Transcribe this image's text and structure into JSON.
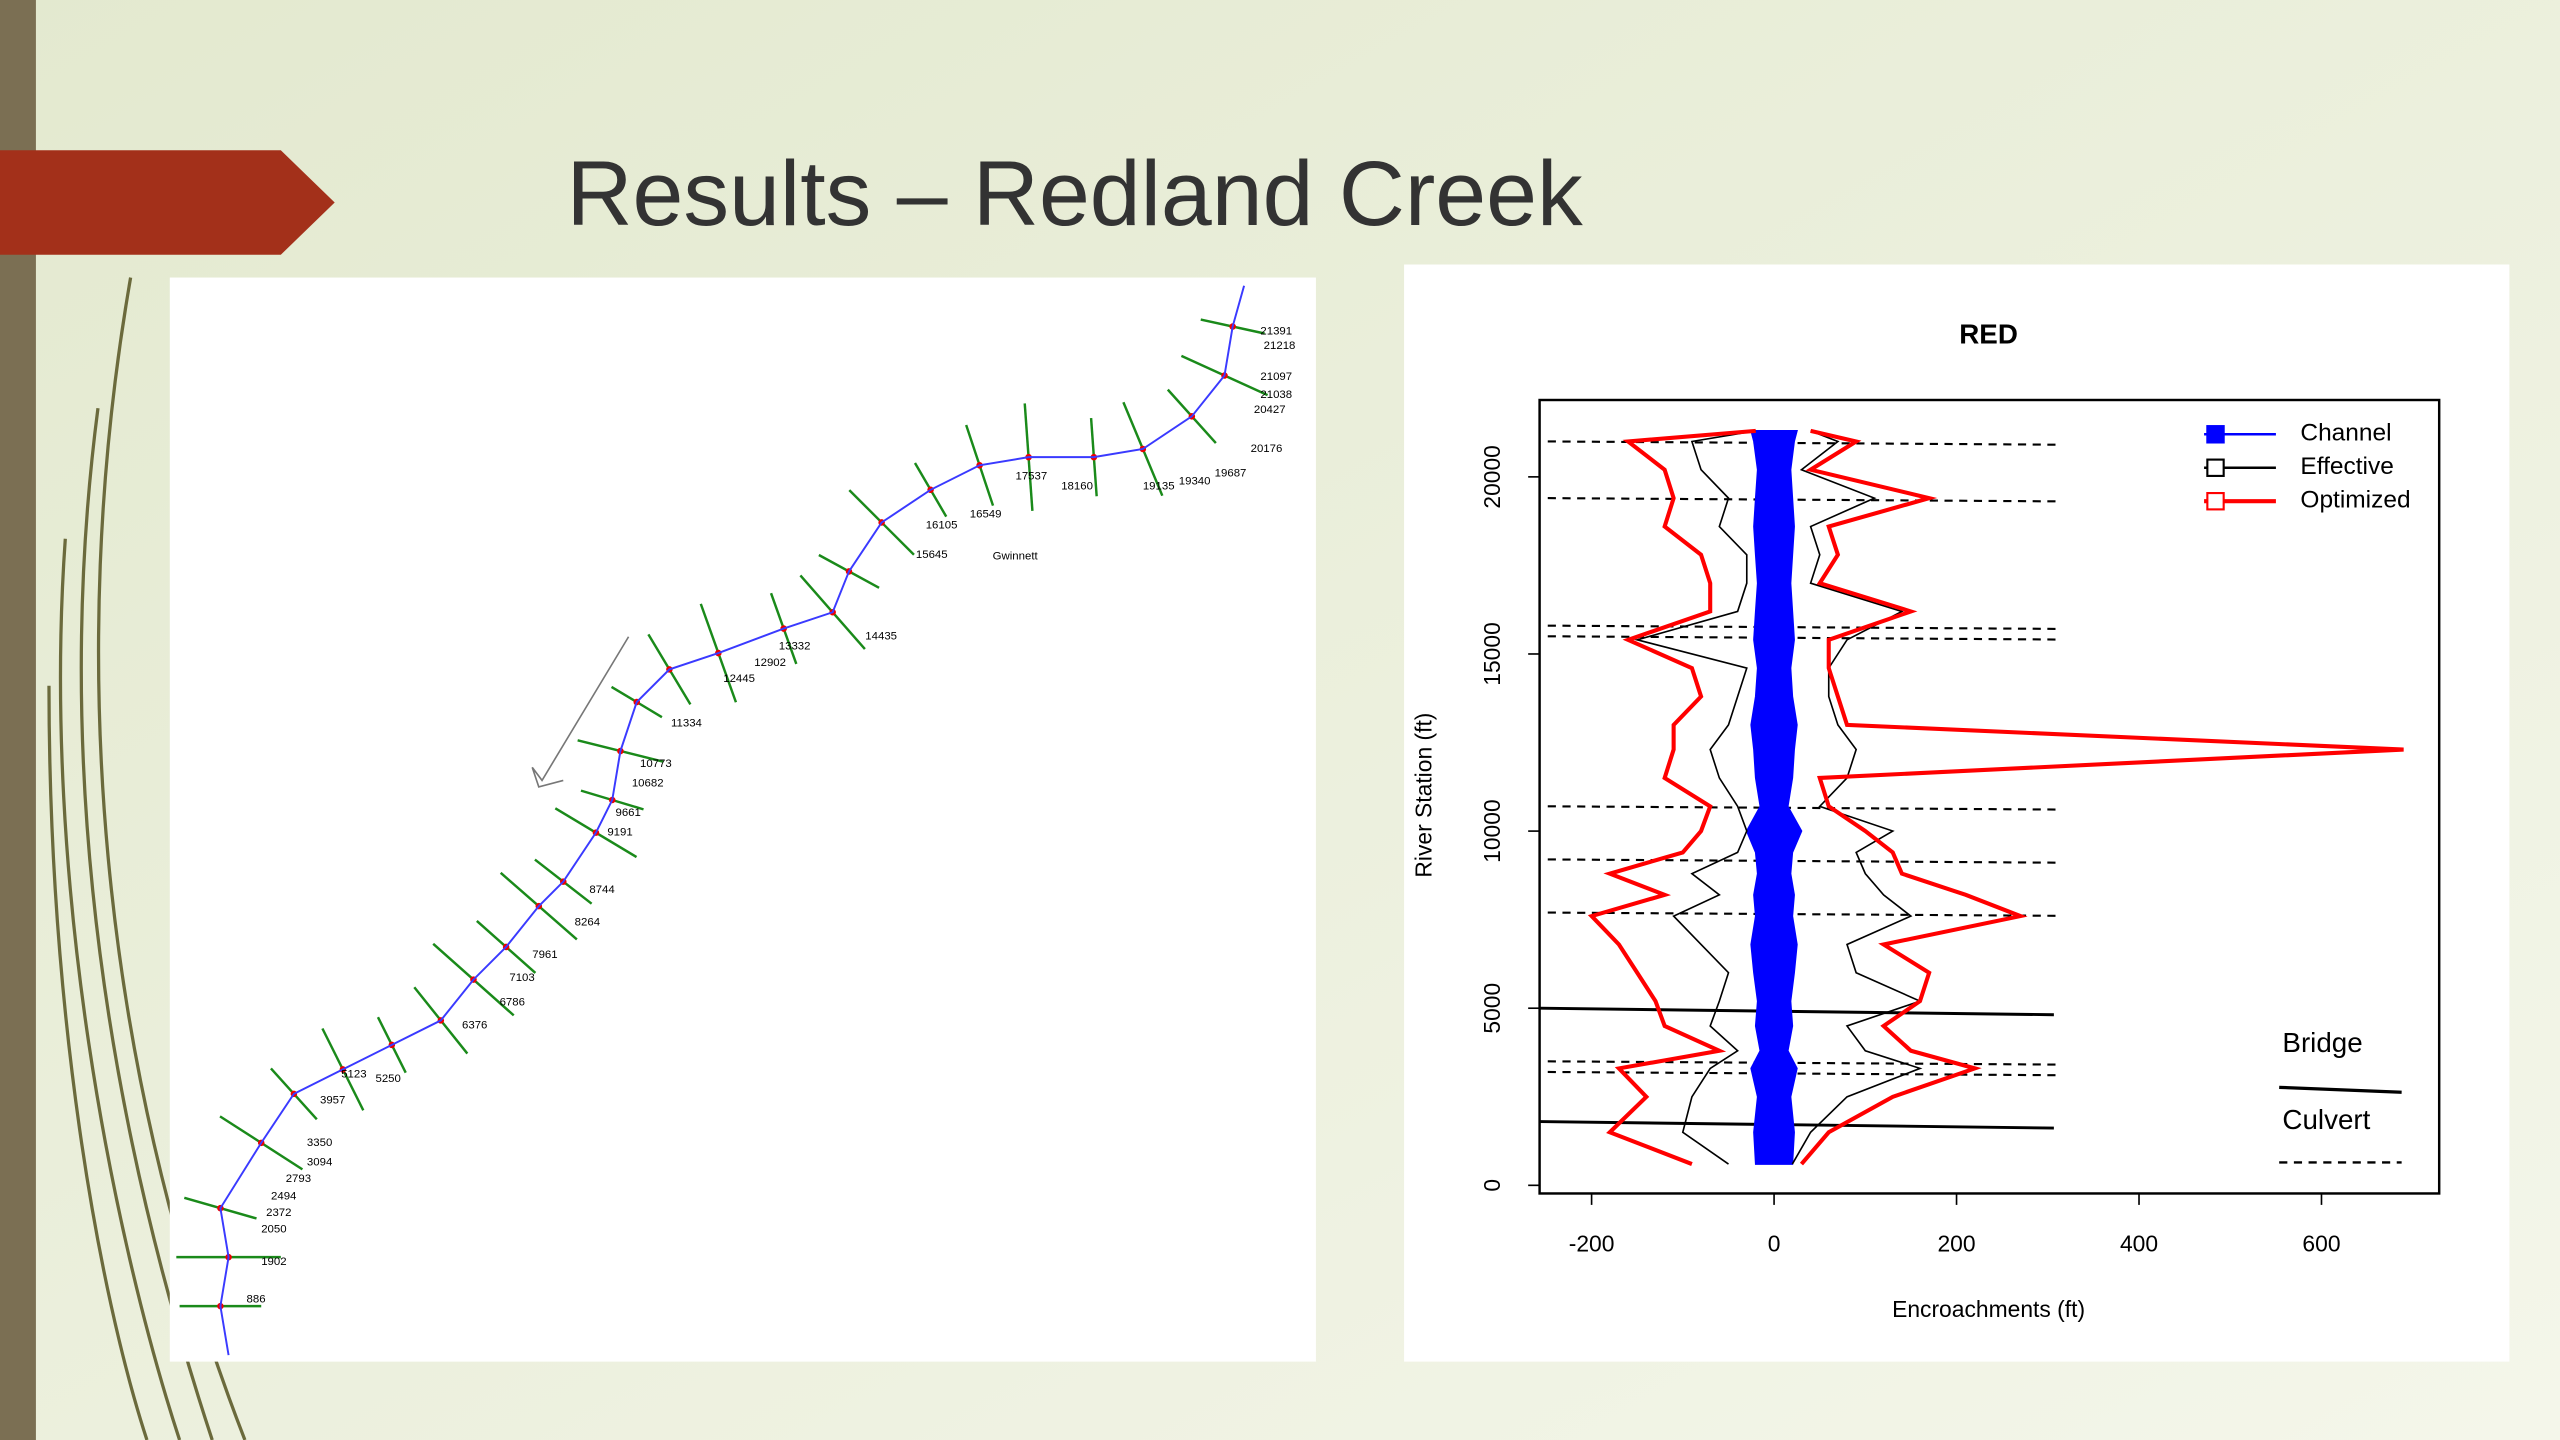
{
  "slide": {
    "title": "Results – Redland Creek"
  },
  "map": {
    "county": "Gwinnett",
    "labels": [
      "21391",
      "21218",
      "21097",
      "21038",
      "20427",
      "20176",
      "19687",
      "19340",
      "19135",
      "18160",
      "17537",
      "16549",
      "16105",
      "15645",
      "14435",
      "13332",
      "12902",
      "12445",
      "11334",
      "10773",
      "10682",
      "9661",
      "9191",
      "8744",
      "8264",
      "7961",
      "7103",
      "6786",
      "6376",
      "5250",
      "5123",
      "3957",
      "3350",
      "3094",
      "2793",
      "2494",
      "2372",
      "2050",
      "1902",
      "886"
    ]
  },
  "chart_data": {
    "type": "line",
    "title": "RED",
    "x_label": "Encroachments (ft)",
    "y_label": "River Station (ft)",
    "xlim": [
      -257,
      729
    ],
    "ylim": [
      -230,
      22170
    ],
    "xticks": [
      -200,
      0,
      200,
      400,
      600
    ],
    "yticks": [
      0,
      5000,
      10000,
      15000,
      20000
    ],
    "stations": [
      600,
      1500,
      2500,
      3300,
      3800,
      4500,
      5200,
      6000,
      6800,
      7600,
      8200,
      8800,
      9400,
      10000,
      10700,
      11500,
      12300,
      13000,
      13800,
      14600,
      15400,
      16200,
      17000,
      17800,
      18600,
      19400,
      20200,
      21000,
      21300
    ],
    "series": [
      {
        "name": "Channel",
        "color": "#0000ff",
        "left": [
          -20,
          -22,
          -18,
          -25,
          -15,
          -20,
          -18,
          -22,
          -25,
          -20,
          -22,
          -18,
          -20,
          -30,
          -15,
          -20,
          -22,
          -25,
          -20,
          -18,
          -22,
          -20,
          -18,
          -20,
          -22,
          -20,
          -18,
          -22,
          -25
        ],
        "right": [
          20,
          22,
          18,
          25,
          15,
          20,
          18,
          22,
          25,
          20,
          22,
          18,
          20,
          30,
          15,
          20,
          22,
          25,
          20,
          18,
          22,
          20,
          18,
          20,
          22,
          20,
          18,
          22,
          25
        ]
      },
      {
        "name": "Effective",
        "color": "#000000",
        "left": [
          -50,
          -100,
          -90,
          -70,
          -40,
          -70,
          -60,
          -50,
          -80,
          -110,
          -60,
          -90,
          -40,
          -30,
          -40,
          -60,
          -70,
          -50,
          -40,
          -30,
          -150,
          -40,
          -30,
          -30,
          -60,
          -50,
          -80,
          -90,
          -20
        ],
        "right": [
          20,
          40,
          80,
          160,
          100,
          80,
          160,
          90,
          80,
          150,
          120,
          100,
          90,
          130,
          50,
          80,
          90,
          70,
          60,
          60,
          80,
          140,
          40,
          50,
          40,
          110,
          30,
          70,
          40
        ]
      },
      {
        "name": "Optimized",
        "color": "#ff0000",
        "left": [
          -90,
          -180,
          -140,
          -170,
          -60,
          -120,
          -130,
          -150,
          -170,
          -200,
          -120,
          -180,
          -100,
          -80,
          -70,
          -120,
          -110,
          -110,
          -80,
          -90,
          -160,
          -70,
          -70,
          -80,
          -120,
          -110,
          -120,
          -160,
          -20
        ],
        "right": [
          30,
          60,
          130,
          220,
          150,
          120,
          160,
          170,
          120,
          270,
          210,
          140,
          130,
          100,
          60,
          50,
          690,
          80,
          70,
          60,
          60,
          150,
          50,
          70,
          60,
          170,
          40,
          90,
          40
        ]
      }
    ],
    "bridges": [
      5000,
      1800
    ],
    "culverts": [
      21000,
      19400,
      15800,
      15500,
      10700,
      9200,
      7700,
      3500,
      3200
    ],
    "bridge_label": "Bridge",
    "culvert_label": "Culvert",
    "legend": "top-right"
  }
}
